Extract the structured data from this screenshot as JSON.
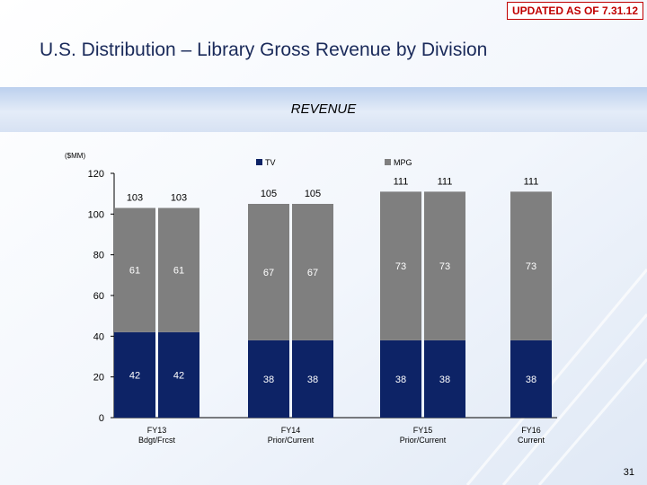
{
  "header": {
    "stamp": "UPDATED AS OF 7.31.12",
    "title": "U.S. Distribution – Library Gross Revenue by Division"
  },
  "section": {
    "label": "REVENUE"
  },
  "footer": {
    "page_number": "31"
  },
  "colors": {
    "tv": "#0d2366",
    "mpg": "#7f7f7f",
    "accent": "#1a2a5a",
    "stamp": "#c00000"
  },
  "chart_data": {
    "type": "bar",
    "stacked": true,
    "unit_label": "($MM)",
    "ylim": [
      0,
      120
    ],
    "yticks": [
      0,
      20,
      40,
      60,
      80,
      100,
      120
    ],
    "grid": false,
    "legend_position": "top",
    "groups": [
      {
        "label": [
          "FY13",
          "Bdgt/Frcst"
        ],
        "bars": 2
      },
      {
        "label": [
          "FY14",
          "Prior/Current"
        ],
        "bars": 2
      },
      {
        "label": [
          "FY15",
          "Prior/Current"
        ],
        "bars": 2
      },
      {
        "label": [
          "FY16",
          "Current"
        ],
        "bars": 1
      }
    ],
    "series": [
      {
        "name": "TV",
        "values": [
          42,
          42,
          38,
          38,
          38,
          38,
          38
        ]
      },
      {
        "name": "MPG",
        "values": [
          61,
          61,
          67,
          67,
          73,
          73,
          73
        ]
      }
    ],
    "totals": [
      103,
      103,
      105,
      105,
      111,
      111,
      111
    ]
  }
}
